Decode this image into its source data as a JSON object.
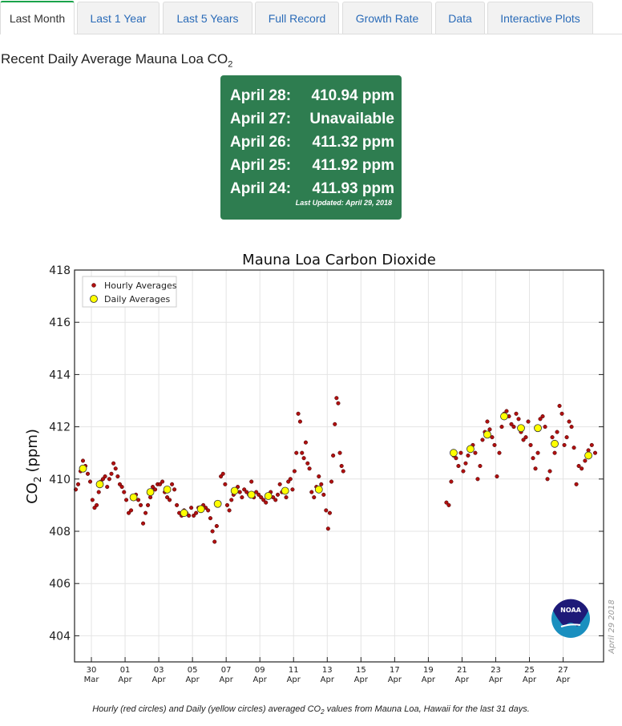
{
  "tabs": [
    {
      "label": "Last Month",
      "active": true
    },
    {
      "label": "Last 1 Year"
    },
    {
      "label": "Last 5 Years"
    },
    {
      "label": "Full Record"
    },
    {
      "label": "Growth Rate"
    },
    {
      "label": "Data"
    },
    {
      "label": "Interactive Plots"
    }
  ],
  "heading": {
    "text": "Recent Daily Average Mauna Loa CO",
    "sub": "2"
  },
  "recent": {
    "rows": [
      {
        "date": "April 28:",
        "value": "410.94 ppm"
      },
      {
        "date": "April 27:",
        "value": "Unavailable"
      },
      {
        "date": "April 26:",
        "value": "411.32 ppm"
      },
      {
        "date": "April 25:",
        "value": "411.92 ppm"
      },
      {
        "date": "April 24:",
        "value": "411.93 ppm"
      }
    ],
    "updated": "Last Updated: April 29, 2018",
    "bg_color": "#2e7d50"
  },
  "chart_data": {
    "type": "scatter",
    "title": "Mauna Loa Carbon Dioxide",
    "ylabel": "CO2 (ppm)",
    "ylabel_main": "CO",
    "ylabel_sub": "2",
    "ylabel_unit": "(ppm)",
    "ylim": [
      403,
      418
    ],
    "xlim_days_from_mar29": [
      0,
      31.4
    ],
    "yticks": [
      404,
      406,
      408,
      410,
      412,
      414,
      416,
      418
    ],
    "xticks": [
      {
        "day": 1,
        "top": "30",
        "bottom": "Mar"
      },
      {
        "day": 3,
        "top": "01",
        "bottom": "Apr"
      },
      {
        "day": 5,
        "top": "03",
        "bottom": "Apr"
      },
      {
        "day": 7,
        "top": "05",
        "bottom": "Apr"
      },
      {
        "day": 9,
        "top": "07",
        "bottom": "Apr"
      },
      {
        "day": 11,
        "top": "09",
        "bottom": "Apr"
      },
      {
        "day": 13,
        "top": "11",
        "bottom": "Apr"
      },
      {
        "day": 15,
        "top": "13",
        "bottom": "Apr"
      },
      {
        "day": 17,
        "top": "15",
        "bottom": "Apr"
      },
      {
        "day": 19,
        "top": "17",
        "bottom": "Apr"
      },
      {
        "day": 21,
        "top": "19",
        "bottom": "Apr"
      },
      {
        "day": 23,
        "top": "21",
        "bottom": "Apr"
      },
      {
        "day": 25,
        "top": "23",
        "bottom": "Apr"
      },
      {
        "day": 27,
        "top": "25",
        "bottom": "Apr"
      },
      {
        "day": 29,
        "top": "27",
        "bottom": "Apr"
      }
    ],
    "legend": {
      "position": "top-left",
      "entries": [
        "Hourly Averages",
        "Daily Averages"
      ]
    },
    "grid": true,
    "colors": {
      "hourly": "#b01010",
      "daily": "#ffff00"
    },
    "watermark": "April 29 2018",
    "logo_text": "NOAA",
    "hourly_by_day": [
      {
        "day": 0,
        "values": [
          409.6,
          409.8,
          410.3,
          410.7,
          410.5,
          410.2,
          409.9
        ]
      },
      {
        "day": 1,
        "values": [
          409.2,
          408.9,
          409.0,
          409.5,
          409.9,
          410.0,
          410.1,
          409.7
        ]
      },
      {
        "day": 2,
        "values": [
          410.0,
          410.2,
          410.6,
          410.4,
          410.1,
          409.8,
          409.7,
          409.5
        ]
      },
      {
        "day": 3,
        "values": [
          409.2,
          408.7,
          408.8,
          409.3,
          409.4,
          409.2,
          409.0
        ]
      },
      {
        "day": 4,
        "values": [
          408.3,
          408.7,
          409.0,
          409.3,
          409.7,
          409.6,
          409.8
        ]
      },
      {
        "day": 5,
        "values": [
          409.8,
          409.9,
          409.5,
          409.3,
          409.2,
          409.8,
          409.6
        ]
      },
      {
        "day": 6,
        "values": [
          409.0,
          408.7,
          408.6,
          408.8,
          408.7,
          408.6,
          408.9
        ]
      },
      {
        "day": 7,
        "values": [
          408.6,
          408.7,
          408.9,
          408.8,
          409.0,
          408.9,
          408.8
        ]
      },
      {
        "day": 8,
        "values": [
          408.5,
          408.0,
          407.6,
          408.2,
          409.0,
          410.1,
          410.2,
          409.8
        ]
      },
      {
        "day": 9,
        "values": [
          409.0,
          408.8,
          409.2,
          409.4,
          409.6,
          409.7,
          409.5,
          409.3
        ]
      },
      {
        "day": 10,
        "values": [
          409.6,
          409.5,
          409.4,
          409.9,
          409.3,
          409.5,
          409.4
        ]
      },
      {
        "day": 11,
        "values": [
          409.3,
          409.2,
          409.1,
          409.4,
          409.5,
          409.3,
          409.2
        ]
      },
      {
        "day": 12,
        "values": [
          409.4,
          409.8,
          409.5,
          409.6,
          409.3,
          409.9,
          410.0,
          409.6
        ]
      },
      {
        "day": 13,
        "values": [
          410.3,
          411.0,
          412.5,
          412.2,
          411.0,
          410.8,
          411.4,
          410.6,
          410.4
        ]
      },
      {
        "day": 14,
        "values": [
          409.5,
          409.3,
          409.7,
          410.1,
          409.8,
          409.4,
          408.8
        ]
      },
      {
        "day": 15,
        "values": [
          408.1,
          408.7,
          409.9,
          410.9,
          412.1,
          413.1,
          412.9,
          411.0,
          410.5,
          410.3
        ]
      },
      {
        "day": 22,
        "values": [
          409.1,
          409.0,
          409.9,
          410.9,
          410.8,
          410.5,
          411.0
        ]
      },
      {
        "day": 23,
        "values": [
          410.3,
          410.6,
          410.9,
          411.2,
          411.3,
          411.0,
          410.0
        ]
      },
      {
        "day": 24,
        "values": [
          410.5,
          411.5,
          411.8,
          412.2,
          411.9,
          411.6,
          411.3
        ]
      },
      {
        "day": 25,
        "values": [
          410.1,
          411.0,
          412.0,
          412.5,
          412.6,
          412.4,
          412.1
        ]
      },
      {
        "day": 26,
        "values": [
          412.0,
          412.5,
          412.3,
          411.8,
          411.5,
          411.6,
          412.2
        ]
      },
      {
        "day": 27,
        "values": [
          411.3,
          410.8,
          410.4,
          411.0,
          412.3,
          412.4,
          412.0
        ]
      },
      {
        "day": 28,
        "values": [
          410.0,
          410.3,
          411.6,
          411.0,
          411.8,
          412.8,
          412.5
        ]
      },
      {
        "day": 29,
        "values": [
          411.3,
          411.6,
          412.2,
          412.0,
          411.2,
          409.8,
          410.5
        ]
      },
      {
        "day": 30,
        "values": [
          410.4,
          410.7,
          411.1,
          411.3,
          411.0
        ]
      }
    ],
    "daily": [
      {
        "day": 0.5,
        "value": 410.4
      },
      {
        "day": 1.5,
        "value": 409.8
      },
      {
        "day": 3.5,
        "value": 409.3
      },
      {
        "day": 4.5,
        "value": 409.5
      },
      {
        "day": 5.5,
        "value": 409.6
      },
      {
        "day": 6.5,
        "value": 408.7
      },
      {
        "day": 7.5,
        "value": 408.85
      },
      {
        "day": 8.5,
        "value": 409.05
      },
      {
        "day": 9.5,
        "value": 409.55
      },
      {
        "day": 10.5,
        "value": 409.4
      },
      {
        "day": 11.5,
        "value": 409.35
      },
      {
        "day": 12.5,
        "value": 409.55
      },
      {
        "day": 14.5,
        "value": 409.6
      },
      {
        "day": 22.5,
        "value": 411.0
      },
      {
        "day": 23.5,
        "value": 411.15
      },
      {
        "day": 24.5,
        "value": 411.7
      },
      {
        "day": 25.5,
        "value": 412.4
      },
      {
        "day": 26.5,
        "value": 411.95
      },
      {
        "day": 27.5,
        "value": 411.95
      },
      {
        "day": 28.5,
        "value": 411.35
      },
      {
        "day": 30.5,
        "value": 410.9
      }
    ]
  },
  "caption": {
    "pre": "Hourly (red circles) and Daily (yellow circles) averaged CO",
    "sub": "2",
    "post": " values from Mauna Loa, Hawaii for the last 31 days."
  }
}
